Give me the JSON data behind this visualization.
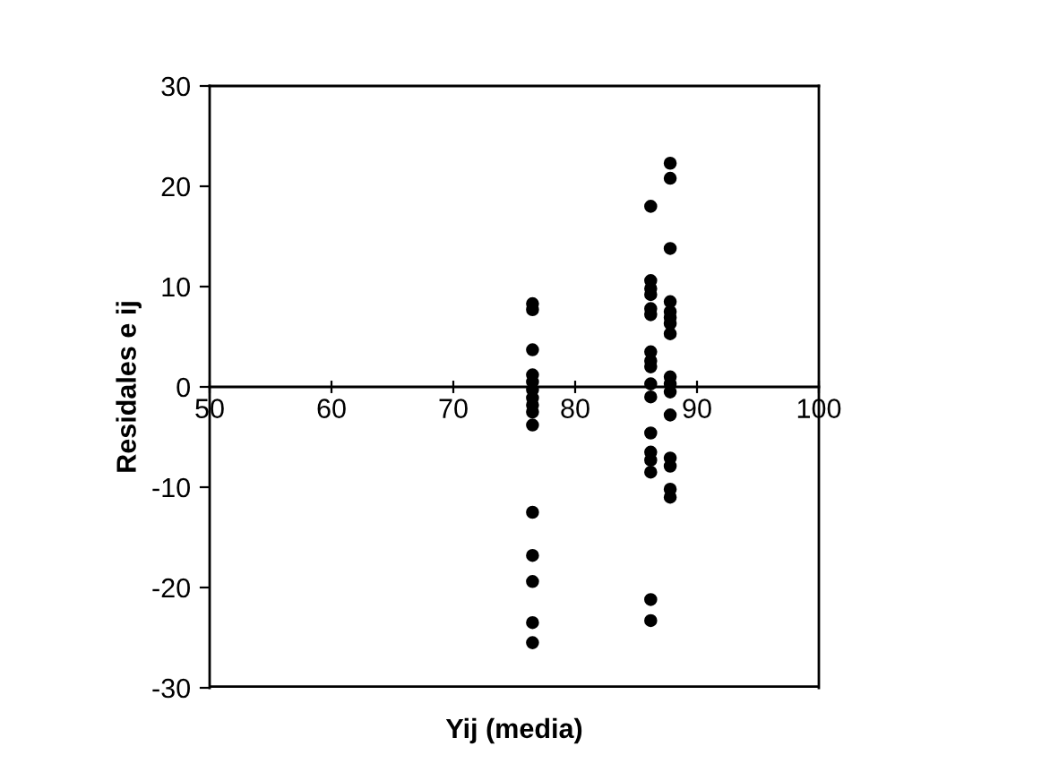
{
  "chart_data": {
    "type": "scatter",
    "xlabel": "Yij (media)",
    "ylabel": "Residales e ij",
    "xlim": [
      50,
      100
    ],
    "ylim": [
      -30,
      30
    ],
    "xticks": [
      50,
      60,
      70,
      80,
      90,
      100
    ],
    "yticks": [
      -30,
      -20,
      -10,
      0,
      10,
      20,
      30
    ],
    "grid": false,
    "legend": false,
    "marker": "circle",
    "series": [
      {
        "color": "#000000",
        "x": [
          76.5,
          76.5,
          76.5,
          76.5,
          76.5,
          76.5,
          76.5,
          76.5,
          76.5,
          76.5,
          76.5,
          76.5,
          76.5,
          76.5,
          76.5,
          86.2,
          86.2,
          86.2,
          86.2,
          86.2,
          86.2,
          86.2,
          86.2,
          86.2,
          86.2,
          86.2,
          86.2,
          86.2,
          86.2,
          86.2,
          86.2,
          86.2,
          87.8,
          87.8,
          87.8,
          87.8,
          87.8,
          87.8,
          87.8,
          87.8,
          87.8,
          87.8,
          87.8,
          87.8,
          87.8,
          87.8,
          87.8,
          87.8
        ],
        "values": [
          8.3,
          7.7,
          3.7,
          1.2,
          0.5,
          -0.3,
          -1.1,
          -1.8,
          -2.5,
          -3.8,
          -12.5,
          -16.8,
          -19.4,
          -23.5,
          -25.5,
          18,
          10.6,
          9.8,
          9.2,
          7.8,
          7.2,
          3.5,
          2.6,
          2.0,
          0.3,
          -1.0,
          -4.6,
          -6.5,
          -7.3,
          -8.5,
          -21.2,
          -23.3,
          22.3,
          20.8,
          13.8,
          8.5,
          7.5,
          6.9,
          6.3,
          5.3,
          1.0,
          0.3,
          -0.5,
          -2.8,
          -7.1,
          -7.9,
          -10.2,
          -11.0
        ]
      }
    ]
  }
}
